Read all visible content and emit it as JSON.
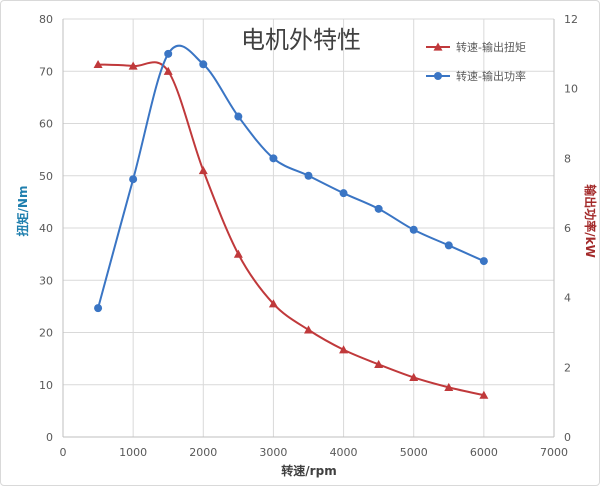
{
  "chart_data": {
    "type": "scatter",
    "title": "电机外特性",
    "xlabel": "转速/rpm",
    "ylabel_left": "扭矩/Nm",
    "ylabel_right": "输出功率/kW",
    "xlim": [
      0,
      7000
    ],
    "ylim_left": [
      0,
      80
    ],
    "ylim_right": [
      0,
      12
    ],
    "x_ticks": [
      0,
      1000,
      2000,
      3000,
      4000,
      5000,
      6000,
      7000
    ],
    "y_left_ticks": [
      0,
      10,
      20,
      30,
      40,
      50,
      60,
      70,
      80
    ],
    "y_right_ticks": [
      0,
      2,
      4,
      6,
      8,
      10,
      12
    ],
    "grid": true,
    "legend_position": "top-right",
    "series": [
      {
        "name": "转速-输出扭矩",
        "axis": "left",
        "marker": "triangle",
        "color": "#c0393b",
        "x": [
          500,
          1000,
          1500,
          2000,
          2500,
          3000,
          3500,
          4000,
          4500,
          5000,
          5500,
          6000
        ],
        "y": [
          71.3,
          71.0,
          70.0,
          51.0,
          35.0,
          25.5,
          20.5,
          16.7,
          13.9,
          11.4,
          9.5,
          8.0
        ]
      },
      {
        "name": "转速-输出功率",
        "axis": "right",
        "marker": "circle",
        "color": "#3a75c4",
        "x": [
          500,
          1000,
          1500,
          2000,
          2500,
          3000,
          3500,
          4000,
          4500,
          5000,
          5500,
          6000
        ],
        "y": [
          3.7,
          7.4,
          11.0,
          10.7,
          9.2,
          8.0,
          7.5,
          7.0,
          6.55,
          5.95,
          5.5,
          5.05
        ]
      }
    ]
  }
}
